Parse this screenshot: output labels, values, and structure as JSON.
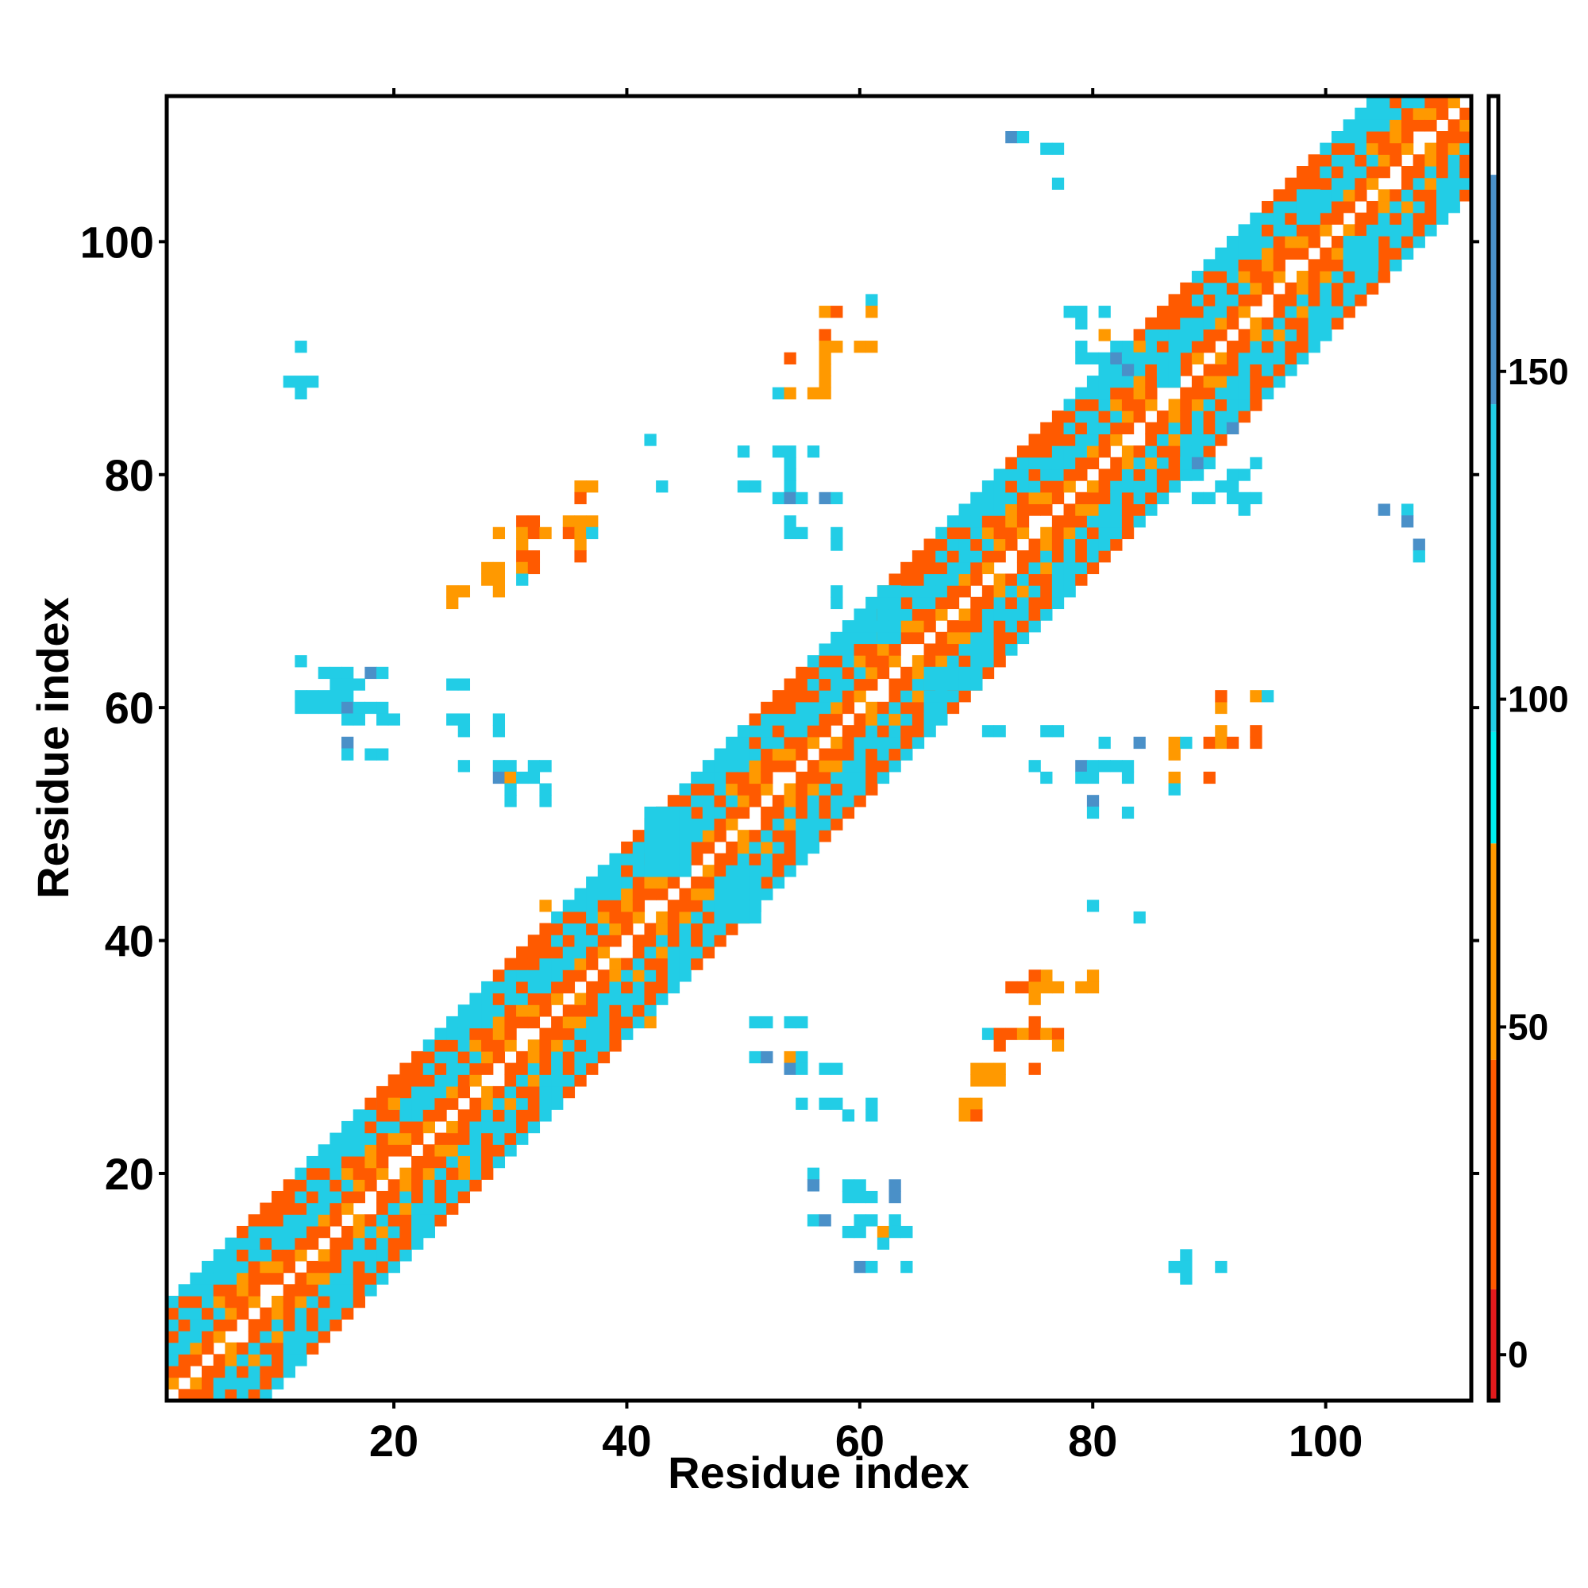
{
  "chart_data": {
    "type": "heatmap",
    "title": "",
    "xlabel": "Residue index",
    "ylabel": "Residue index",
    "xlim": [
      0.5,
      112.5
    ],
    "ylim": [
      0.5,
      112.5
    ],
    "x_ticks": [
      20,
      40,
      60,
      80,
      100
    ],
    "y_ticks": [
      20,
      40,
      60,
      80,
      100
    ],
    "colorbar": {
      "ticks": [
        0,
        50,
        100,
        150
      ],
      "range": [
        -7,
        192
      ],
      "bands": [
        {
          "from": -7,
          "to": 10,
          "color": "#e31a1c"
        },
        {
          "from": 10,
          "to": 45,
          "color": "#ff5a00"
        },
        {
          "from": 45,
          "to": 78,
          "color": "#ff9900"
        },
        {
          "from": 78,
          "to": 95,
          "color": "#00f0f0"
        },
        {
          "from": 95,
          "to": 145,
          "color": "#22cde6"
        },
        {
          "from": 145,
          "to": 180,
          "color": "#4a90c8"
        },
        {
          "from": 180,
          "to": 192,
          "color": "#ffffff"
        }
      ]
    },
    "main_band": {
      "description_values": "Contacts within |i-j|<=8 along the diagonal",
      "max_offset": 8
    },
    "cells": [
      [
        12,
        91,
        130
      ],
      [
        11,
        88,
        120
      ],
      [
        12,
        88,
        125
      ],
      [
        13,
        88,
        120
      ],
      [
        12,
        87,
        125
      ],
      [
        12,
        64,
        135
      ],
      [
        14,
        63,
        125
      ],
      [
        15,
        63,
        120
      ],
      [
        16,
        63,
        140
      ],
      [
        18,
        63,
        150
      ],
      [
        19,
        63,
        140
      ],
      [
        15,
        62,
        120
      ],
      [
        16,
        62,
        125
      ],
      [
        17,
        62,
        120
      ],
      [
        12,
        61,
        140
      ],
      [
        13,
        61,
        125
      ],
      [
        14,
        61,
        115
      ],
      [
        15,
        61,
        130
      ],
      [
        16,
        61,
        120
      ],
      [
        12,
        60,
        125
      ],
      [
        13,
        60,
        120
      ],
      [
        14,
        60,
        120
      ],
      [
        15,
        60,
        125
      ],
      [
        16,
        60,
        150
      ],
      [
        17,
        60,
        125
      ],
      [
        18,
        60,
        120
      ],
      [
        19,
        60,
        140
      ],
      [
        16,
        59,
        120
      ],
      [
        17,
        59,
        125
      ],
      [
        19,
        59,
        130
      ],
      [
        20,
        59,
        95
      ],
      [
        16,
        57,
        150
      ],
      [
        18,
        56,
        125
      ],
      [
        19,
        56,
        125
      ],
      [
        16,
        56,
        140
      ],
      [
        25,
        62,
        125
      ],
      [
        26,
        62,
        120
      ],
      [
        25,
        59,
        120
      ],
      [
        26,
        59,
        125
      ],
      [
        29,
        59,
        125
      ],
      [
        26,
        58,
        125
      ],
      [
        29,
        58,
        120
      ],
      [
        26,
        55,
        120
      ],
      [
        29,
        55,
        130
      ],
      [
        30,
        55,
        120
      ],
      [
        32,
        55,
        125
      ],
      [
        33,
        55,
        120
      ],
      [
        29,
        54,
        150
      ],
      [
        30,
        54,
        70
      ],
      [
        31,
        54,
        120
      ],
      [
        32,
        54,
        125
      ],
      [
        30,
        53,
        125
      ],
      [
        33,
        53,
        120
      ],
      [
        30,
        52,
        120
      ],
      [
        33,
        52,
        125
      ],
      [
        26,
        20,
        70
      ],
      [
        25,
        20,
        30
      ],
      [
        26,
        21,
        70
      ],
      [
        19,
        26,
        20
      ],
      [
        20,
        26,
        70
      ],
      [
        19,
        25,
        30
      ],
      [
        25,
        70,
        70
      ],
      [
        26,
        70,
        70
      ],
      [
        25,
        69,
        55
      ],
      [
        28,
        72,
        70
      ],
      [
        29,
        72,
        70
      ],
      [
        28,
        71,
        70
      ],
      [
        29,
        71,
        70
      ],
      [
        29,
        70,
        70
      ],
      [
        29,
        75,
        70
      ],
      [
        31,
        76,
        30
      ],
      [
        32,
        76,
        40
      ],
      [
        31,
        75,
        70
      ],
      [
        32,
        75,
        30
      ],
      [
        33,
        75,
        70
      ],
      [
        31,
        74,
        70
      ],
      [
        31,
        73,
        40
      ],
      [
        32,
        73,
        30
      ],
      [
        31,
        72,
        70
      ],
      [
        32,
        72,
        30
      ],
      [
        31,
        71,
        95
      ],
      [
        36,
        79,
        70
      ],
      [
        37,
        79,
        70
      ],
      [
        36,
        78,
        40
      ],
      [
        35,
        76,
        70
      ],
      [
        36,
        76,
        55
      ],
      [
        37,
        76,
        70
      ],
      [
        35,
        75,
        40
      ],
      [
        36,
        75,
        70
      ],
      [
        37,
        75,
        95
      ],
      [
        36,
        74,
        55
      ],
      [
        36,
        73,
        20
      ],
      [
        33,
        43,
        70
      ],
      [
        42,
        33,
        70
      ],
      [
        42,
        83,
        125
      ],
      [
        43,
        79,
        130
      ],
      [
        50,
        82,
        130
      ],
      [
        53,
        82,
        120
      ],
      [
        54,
        82,
        125
      ],
      [
        56,
        82,
        140
      ],
      [
        54,
        81,
        120
      ],
      [
        54,
        80,
        120
      ],
      [
        50,
        79,
        125
      ],
      [
        51,
        79,
        140
      ],
      [
        54,
        79,
        125
      ],
      [
        53,
        78,
        130
      ],
      [
        54,
        78,
        150
      ],
      [
        55,
        78,
        125
      ],
      [
        57,
        78,
        150
      ],
      [
        58,
        78,
        125
      ],
      [
        54,
        76,
        130
      ],
      [
        54,
        75,
        125
      ],
      [
        55,
        75,
        120
      ],
      [
        58,
        75,
        125
      ],
      [
        58,
        74,
        120
      ],
      [
        58,
        70,
        125
      ],
      [
        58,
        69,
        120
      ],
      [
        57,
        94,
        55
      ],
      [
        58,
        94,
        20
      ],
      [
        61,
        95,
        120
      ],
      [
        61,
        94,
        70
      ],
      [
        57,
        92,
        40
      ],
      [
        57,
        91,
        70
      ],
      [
        58,
        91,
        70
      ],
      [
        60,
        91,
        70
      ],
      [
        61,
        91,
        55
      ],
      [
        57,
        90,
        70
      ],
      [
        54,
        90,
        20
      ],
      [
        57,
        89,
        70
      ],
      [
        53,
        87,
        95
      ],
      [
        54,
        87,
        55
      ],
      [
        56,
        87,
        70
      ],
      [
        57,
        87,
        55
      ],
      [
        57,
        88,
        70
      ],
      [
        73,
        109,
        150
      ],
      [
        74,
        109,
        140
      ],
      [
        76,
        108,
        140
      ],
      [
        77,
        108,
        120
      ],
      [
        77,
        105,
        140
      ],
      [
        78,
        94,
        120
      ],
      [
        79,
        94,
        95
      ],
      [
        81,
        94,
        120
      ],
      [
        79,
        93,
        125
      ],
      [
        81,
        92,
        70
      ],
      [
        79,
        91,
        120
      ],
      [
        82,
        91,
        130
      ],
      [
        84,
        91,
        70
      ],
      [
        79,
        90,
        125
      ],
      [
        80,
        90,
        120
      ],
      [
        81,
        90,
        120
      ],
      [
        82,
        90,
        150
      ],
      [
        83,
        90,
        125
      ],
      [
        84,
        90,
        120
      ],
      [
        81,
        89,
        120
      ],
      [
        83,
        89,
        150
      ],
      [
        87,
        79,
        120
      ],
      [
        86,
        79,
        20
      ],
      [
        91,
        79,
        125
      ],
      [
        86,
        80,
        40
      ],
      [
        88,
        80,
        120
      ],
      [
        89,
        80,
        125
      ],
      [
        88,
        81,
        125
      ],
      [
        89,
        81,
        150
      ],
      [
        90,
        81,
        130
      ],
      [
        92,
        80,
        140
      ],
      [
        93,
        80,
        125
      ],
      [
        92,
        79,
        125
      ],
      [
        93,
        78,
        130
      ],
      [
        92,
        78,
        120
      ],
      [
        89,
        78,
        125
      ],
      [
        90,
        78,
        120
      ],
      [
        93,
        77,
        120
      ],
      [
        94,
        78,
        120
      ],
      [
        94,
        81,
        125
      ],
      [
        92,
        84,
        150
      ],
      [
        105,
        77,
        150
      ],
      [
        107,
        77,
        140
      ],
      [
        107,
        76,
        150
      ],
      [
        108,
        74,
        150
      ],
      [
        108,
        73,
        140
      ],
      [
        71,
        58,
        120
      ],
      [
        72,
        58,
        95
      ],
      [
        76,
        58,
        120
      ],
      [
        77,
        58,
        125
      ],
      [
        81,
        57,
        120
      ],
      [
        84,
        57,
        150
      ],
      [
        87,
        57,
        70
      ],
      [
        88,
        57,
        120
      ],
      [
        90,
        57,
        40
      ],
      [
        91,
        57,
        70
      ],
      [
        92,
        57,
        30
      ],
      [
        94,
        57,
        40
      ],
      [
        87,
        56,
        70
      ],
      [
        91,
        58,
        55
      ],
      [
        94,
        58,
        20
      ],
      [
        91,
        60,
        55
      ],
      [
        91,
        61,
        30
      ],
      [
        94,
        61,
        70
      ],
      [
        95,
        61,
        120
      ],
      [
        75,
        55,
        125
      ],
      [
        76,
        54,
        120
      ],
      [
        79,
        55,
        150
      ],
      [
        80,
        55,
        120
      ],
      [
        81,
        55,
        125
      ],
      [
        82,
        55,
        125
      ],
      [
        83,
        55,
        120
      ],
      [
        79,
        54,
        125
      ],
      [
        80,
        54,
        120
      ],
      [
        83,
        54,
        125
      ],
      [
        80,
        52,
        150
      ],
      [
        80,
        51,
        125
      ],
      [
        83,
        51,
        140
      ],
      [
        87,
        54,
        70
      ],
      [
        90,
        54,
        20
      ],
      [
        87,
        53,
        95
      ],
      [
        80,
        43,
        120
      ],
      [
        84,
        42,
        140
      ],
      [
        73,
        36,
        20
      ],
      [
        74,
        36,
        40
      ],
      [
        75,
        36,
        70
      ],
      [
        76,
        36,
        70
      ],
      [
        77,
        36,
        70
      ],
      [
        79,
        36,
        70
      ],
      [
        80,
        36,
        55
      ],
      [
        76,
        37,
        55
      ],
      [
        75,
        37,
        40
      ],
      [
        80,
        37,
        70
      ],
      [
        75,
        35,
        70
      ],
      [
        71,
        32,
        95
      ],
      [
        72,
        32,
        40
      ],
      [
        73,
        32,
        20
      ],
      [
        74,
        32,
        70
      ],
      [
        75,
        32,
        40
      ],
      [
        76,
        32,
        70
      ],
      [
        77,
        32,
        40
      ],
      [
        72,
        31,
        40
      ],
      [
        75,
        33,
        20
      ],
      [
        77,
        31,
        70
      ],
      [
        70,
        29,
        70
      ],
      [
        71,
        29,
        55
      ],
      [
        72,
        29,
        70
      ],
      [
        75,
        29,
        40
      ],
      [
        70,
        28,
        70
      ],
      [
        71,
        28,
        55
      ],
      [
        72,
        28,
        70
      ],
      [
        69,
        26,
        55
      ],
      [
        70,
        26,
        70
      ],
      [
        69,
        25,
        70
      ],
      [
        70,
        25,
        40
      ],
      [
        51,
        33,
        120
      ],
      [
        52,
        33,
        120
      ],
      [
        54,
        33,
        130
      ],
      [
        55,
        33,
        125
      ],
      [
        51,
        30,
        125
      ],
      [
        52,
        30,
        150
      ],
      [
        54,
        30,
        55
      ],
      [
        55,
        30,
        120
      ],
      [
        54,
        29,
        150
      ],
      [
        55,
        29,
        120
      ],
      [
        57,
        29,
        120
      ],
      [
        58,
        29,
        120
      ],
      [
        55,
        26,
        120
      ],
      [
        57,
        26,
        125
      ],
      [
        58,
        26,
        120
      ],
      [
        59,
        25,
        120
      ],
      [
        61,
        26,
        125
      ],
      [
        61,
        25,
        120
      ],
      [
        56,
        20,
        125
      ],
      [
        56,
        19,
        150
      ],
      [
        59,
        19,
        120
      ],
      [
        60,
        19,
        120
      ],
      [
        63,
        19,
        150
      ],
      [
        59,
        18,
        125
      ],
      [
        60,
        18,
        120
      ],
      [
        61,
        18,
        120
      ],
      [
        63,
        18,
        150
      ],
      [
        56,
        16,
        120
      ],
      [
        57,
        16,
        150
      ],
      [
        60,
        16,
        120
      ],
      [
        61,
        16,
        140
      ],
      [
        63,
        16,
        125
      ],
      [
        59,
        15,
        125
      ],
      [
        60,
        15,
        130
      ],
      [
        62,
        15,
        55
      ],
      [
        63,
        15,
        140
      ],
      [
        64,
        15,
        120
      ],
      [
        62,
        14,
        120
      ],
      [
        60,
        12,
        150
      ],
      [
        61,
        12,
        120
      ],
      [
        64,
        12,
        125
      ],
      [
        87,
        12,
        125
      ],
      [
        88,
        13,
        120
      ],
      [
        88,
        12,
        120
      ],
      [
        88,
        11,
        120
      ],
      [
        91,
        12,
        125
      ]
    ],
    "blocks": [
      [
        42,
        46,
        45,
        51,
        140
      ],
      [
        48,
        42,
        51,
        45,
        140
      ],
      [
        62,
        66,
        63,
        70,
        125
      ],
      [
        66,
        62,
        70,
        63,
        125
      ],
      [
        86,
        88,
        87,
        90,
        125
      ],
      [
        98,
        102,
        99,
        104,
        140
      ],
      [
        102,
        98,
        104,
        100,
        125
      ]
    ]
  }
}
